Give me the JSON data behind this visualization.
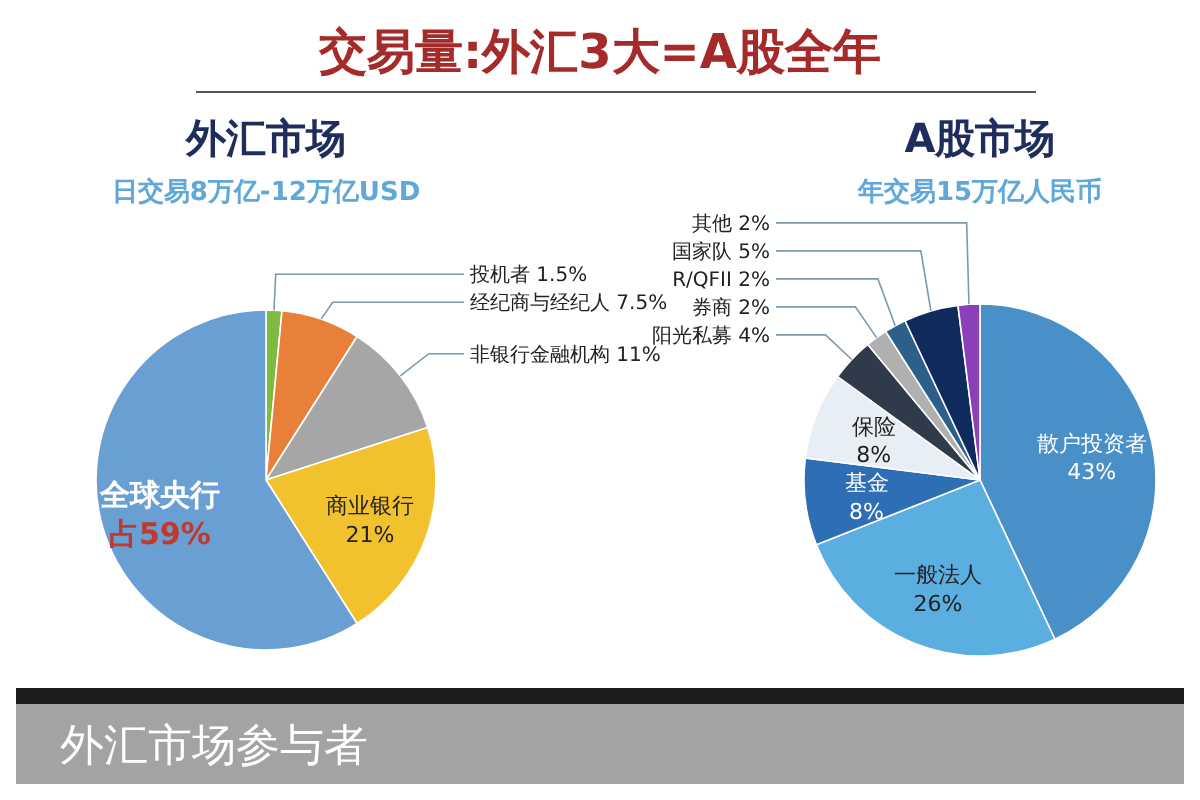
{
  "chart_data": [
    {
      "type": "pie",
      "title": "外汇市场",
      "subtitle": "日交易8万亿-12万亿USD",
      "annotations": [
        "交易量:外汇3大=A股全年",
        "外汇市场参与者"
      ],
      "categories": [
        "投机者",
        "经纪商与经纪人",
        "非银行金融机构",
        "商业银行",
        "全球央行"
      ],
      "values": [
        1.5,
        7.5,
        11,
        21,
        59
      ],
      "value_labels": [
        "1.5%",
        "7.5%",
        "11%",
        "21%",
        "占59%"
      ],
      "colors": [
        "#7dbb42",
        "#e8803a",
        "#a6a6a6",
        "#f2c12e",
        "#6a9fd4"
      ]
    },
    {
      "type": "pie",
      "title": "A股市场",
      "subtitle": "年交易15万亿人民币",
      "categories": [
        "散户投资者",
        "一般法人",
        "基金",
        "保险",
        "阳光私募",
        "券商",
        "R/QFII",
        "国家队",
        "其他"
      ],
      "values": [
        43,
        26,
        8,
        8,
        4,
        2,
        2,
        5,
        2
      ],
      "value_labels": [
        "43%",
        "26%",
        "8%",
        "8%",
        "4%",
        "2%",
        "2%",
        "5%",
        "2%"
      ],
      "colors": [
        "#4a90c8",
        "#5aaee0",
        "#2e6eb5",
        "#e8eef5",
        "#2f3a4a",
        "#b0b0b0",
        "#2c5f8a",
        "#0f2a5c",
        "#8b3fb8"
      ]
    }
  ]
}
